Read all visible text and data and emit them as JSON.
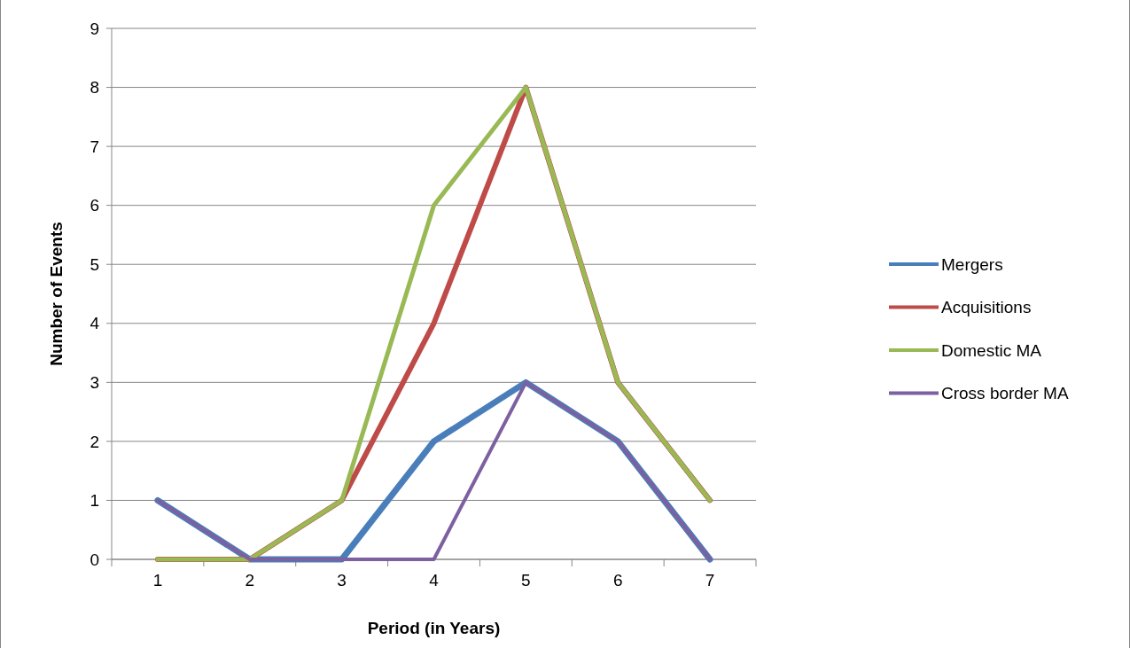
{
  "chart_data": {
    "type": "line",
    "xlabel": "Period (in Years)",
    "ylabel": "Number of Events",
    "categories": [
      "1",
      "2",
      "3",
      "4",
      "5",
      "6",
      "7"
    ],
    "series": [
      {
        "name": "Mergers",
        "color": "#4a7ebb",
        "values": [
          1,
          0,
          0,
          2,
          3,
          2,
          0
        ]
      },
      {
        "name": "Acquisitions",
        "color": "#be4b48",
        "values": [
          0,
          0,
          1,
          4,
          8,
          3,
          1
        ]
      },
      {
        "name": "Domestic MA",
        "color": "#98b954",
        "values": [
          0,
          0,
          1,
          6,
          8,
          3,
          1
        ]
      },
      {
        "name": "Cross border MA",
        "color": "#7d60a0",
        "values": [
          1,
          0,
          0,
          0,
          3,
          2,
          0
        ]
      }
    ],
    "ylim": [
      0,
      9
    ],
    "yticks": [
      0,
      1,
      2,
      3,
      4,
      5,
      6,
      7,
      8,
      9
    ],
    "grid": "y",
    "legend": "right",
    "marker": "none",
    "line_style": "solid"
  }
}
